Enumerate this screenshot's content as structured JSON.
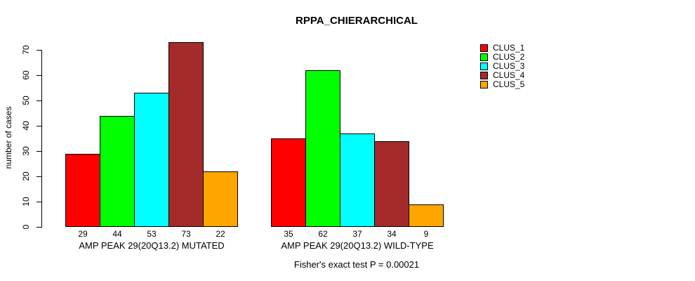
{
  "chart_data": {
    "type": "bar",
    "title": "RPPA_CHIERARCHICAL",
    "ylabel": "number of cases",
    "xlabel": "",
    "subtitle": "Fisher's exact test P = 0.00021",
    "categories": [
      "AMP PEAK 29(20Q13.2) MUTATED",
      "AMP PEAK 29(20Q13.2) WILD-TYPE"
    ],
    "series": [
      {
        "name": "CLUS_1",
        "color": "#ff0000",
        "values": [
          29,
          35
        ]
      },
      {
        "name": "CLUS_2",
        "color": "#00ff00",
        "values": [
          44,
          62
        ]
      },
      {
        "name": "CLUS_3",
        "color": "#00ffff",
        "values": [
          53,
          37
        ]
      },
      {
        "name": "CLUS_4",
        "color": "#a52a2a",
        "values": [
          73,
          34
        ]
      },
      {
        "name": "CLUS_5",
        "color": "#ffa500",
        "values": [
          22,
          9
        ]
      }
    ],
    "yticks": [
      0,
      10,
      20,
      30,
      40,
      50,
      60,
      70
    ],
    "ylim": [
      0,
      73
    ],
    "bar_value_labels": true,
    "legend_position": "top-right",
    "grid": false,
    "bar_border_color": "#000000",
    "axis_color": "#000000",
    "background": "#ffffff"
  }
}
